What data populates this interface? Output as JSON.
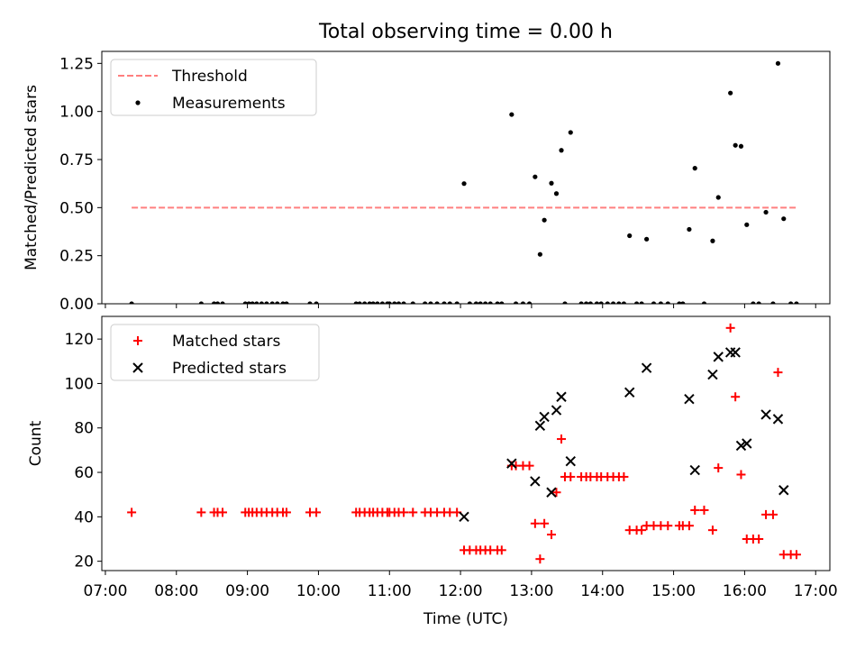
{
  "title": "Total observing time = 0.00 h",
  "chart_data": [
    {
      "type": "scatter",
      "ylabel": "Matched/Predicted stars",
      "xlim": [
        6.95,
        17.2
      ],
      "ylim": [
        0,
        1.3125
      ],
      "yticks": [
        0,
        0.25,
        0.5,
        0.75,
        1.0,
        1.25
      ],
      "ytick_labels": [
        "0.00",
        "0.25",
        "0.50",
        "0.75",
        "1.00",
        "1.25"
      ],
      "legend_position": "top-left",
      "series": [
        {
          "name": "Threshold",
          "kind": "line",
          "style": "dashed",
          "color": "#ff7f7f",
          "x": [
            7.37,
            16.73
          ],
          "y": [
            0.5,
            0.5
          ]
        },
        {
          "name": "Measurements",
          "kind": "scatter",
          "marker": "dot",
          "color": "#000000",
          "x": [
            7.37,
            8.35,
            8.53,
            8.58,
            8.65,
            8.97,
            9.02,
            9.07,
            9.13,
            9.2,
            9.27,
            9.35,
            9.42,
            9.5,
            9.55,
            9.88,
            9.97,
            10.53,
            10.58,
            10.65,
            10.72,
            10.77,
            10.83,
            10.9,
            10.97,
            11.0,
            11.07,
            11.13,
            11.2,
            11.33,
            11.5,
            11.58,
            11.67,
            11.77,
            11.85,
            11.95,
            12.05,
            12.13,
            12.22,
            12.28,
            12.35,
            12.42,
            12.52,
            12.58,
            12.72,
            12.78,
            12.88,
            12.97,
            13.05,
            13.12,
            13.18,
            13.28,
            13.35,
            13.42,
            13.47,
            13.55,
            13.7,
            13.77,
            13.83,
            13.92,
            13.98,
            14.07,
            14.15,
            14.23,
            14.3,
            14.38,
            14.48,
            14.55,
            14.62,
            14.72,
            14.82,
            14.92,
            15.08,
            15.13,
            15.22,
            15.3,
            15.43,
            15.55,
            15.63,
            15.8,
            15.87,
            15.95,
            16.03,
            16.12,
            16.2,
            16.3,
            16.4,
            16.47,
            16.55,
            16.65,
            16.73
          ],
          "y": [
            0.0,
            0.0,
            0.0,
            0.0,
            0.0,
            0.0,
            0.0,
            0.0,
            0.0,
            0.0,
            0.0,
            0.0,
            0.0,
            0.0,
            0.0,
            0.0,
            0.0,
            0.0,
            0.0,
            0.0,
            0.0,
            0.0,
            0.0,
            0.0,
            0.0,
            0.0,
            0.0,
            0.0,
            0.0,
            0.0,
            0.0,
            0.0,
            0.0,
            0.0,
            0.0,
            0.0,
            0.625,
            0.0,
            0.0,
            0.0,
            0.0,
            0.0,
            0.0,
            0.0,
            0.984,
            0.0,
            0.0,
            0.0,
            0.66,
            0.257,
            0.435,
            0.627,
            0.573,
            0.798,
            0.0,
            0.891,
            0.0,
            0.0,
            0.0,
            0.0,
            0.0,
            0.0,
            0.0,
            0.0,
            0.0,
            0.354,
            0.0,
            0.0,
            0.336,
            0.0,
            0.0,
            0.0,
            0.0,
            0.0,
            0.387,
            0.705,
            0.0,
            0.327,
            0.553,
            1.096,
            0.824,
            0.819,
            0.411,
            0.0,
            0.0,
            0.476,
            0.0,
            1.25,
            0.442,
            0.0,
            0.0
          ]
        }
      ]
    },
    {
      "type": "scatter",
      "ylabel": "Count",
      "xlabel": "Time (UTC)",
      "xlim": [
        6.95,
        17.2
      ],
      "ylim": [
        15.8,
        130.2
      ],
      "xticks": [
        7,
        8,
        9,
        10,
        11,
        12,
        13,
        14,
        15,
        16,
        17
      ],
      "xtick_labels": [
        "07:00",
        "08:00",
        "09:00",
        "10:00",
        "11:00",
        "12:00",
        "13:00",
        "14:00",
        "15:00",
        "16:00",
        "17:00"
      ],
      "yticks": [
        20,
        40,
        60,
        80,
        100,
        120
      ],
      "ytick_labels": [
        "20",
        "40",
        "60",
        "80",
        "100",
        "120"
      ],
      "legend_position": "top-left",
      "series": [
        {
          "name": "Matched stars",
          "kind": "scatter",
          "marker": "plus",
          "color": "#ff0000",
          "x": [
            7.37,
            8.35,
            8.53,
            8.58,
            8.65,
            8.97,
            9.02,
            9.07,
            9.13,
            9.2,
            9.27,
            9.35,
            9.42,
            9.5,
            9.55,
            9.88,
            9.97,
            10.53,
            10.58,
            10.65,
            10.72,
            10.77,
            10.83,
            10.9,
            10.97,
            11.0,
            11.07,
            11.13,
            11.2,
            11.33,
            11.5,
            11.58,
            11.67,
            11.77,
            11.85,
            11.95,
            12.05,
            12.13,
            12.22,
            12.28,
            12.35,
            12.42,
            12.52,
            12.58,
            12.72,
            12.78,
            12.88,
            12.97,
            13.05,
            13.12,
            13.18,
            13.28,
            13.35,
            13.42,
            13.47,
            13.55,
            13.7,
            13.77,
            13.83,
            13.92,
            13.98,
            14.07,
            14.15,
            14.23,
            14.3,
            14.38,
            14.48,
            14.55,
            14.62,
            14.72,
            14.82,
            14.92,
            15.08,
            15.13,
            15.22,
            15.3,
            15.43,
            15.55,
            15.63,
            15.8,
            15.87,
            15.95,
            16.03,
            16.12,
            16.2,
            16.3,
            16.4,
            16.47,
            16.55,
            16.65,
            16.73
          ],
          "y": [
            42,
            42,
            42,
            42,
            42,
            42,
            42,
            42,
            42,
            42,
            42,
            42,
            42,
            42,
            42,
            42,
            42,
            42,
            42,
            42,
            42,
            42,
            42,
            42,
            42,
            42,
            42,
            42,
            42,
            42,
            42,
            42,
            42,
            42,
            42,
            42,
            25,
            25,
            25,
            25,
            25,
            25,
            25,
            25,
            63,
            63,
            63,
            63,
            37,
            21,
            37,
            32,
            51,
            75,
            58,
            58,
            58,
            58,
            58,
            58,
            58,
            58,
            58,
            58,
            58,
            34,
            34,
            34,
            36,
            36,
            36,
            36,
            36,
            36,
            36,
            43,
            43,
            34,
            62,
            125,
            94,
            59,
            30,
            30,
            30,
            41,
            41,
            105,
            23,
            23,
            23
          ]
        },
        {
          "name": "Predicted stars",
          "kind": "scatter",
          "marker": "cross",
          "color": "#000000",
          "x": [
            12.05,
            12.72,
            13.05,
            13.12,
            13.18,
            13.28,
            13.35,
            13.42,
            13.55,
            14.38,
            14.62,
            15.22,
            15.3,
            15.55,
            15.63,
            15.8,
            15.87,
            15.95,
            16.03,
            16.3,
            16.47,
            16.55
          ],
          "y": [
            40,
            64,
            56,
            81,
            85,
            51,
            88,
            94,
            65,
            96,
            107,
            93,
            61,
            104,
            112,
            114,
            114,
            72,
            73,
            86,
            84,
            52
          ]
        }
      ]
    }
  ]
}
